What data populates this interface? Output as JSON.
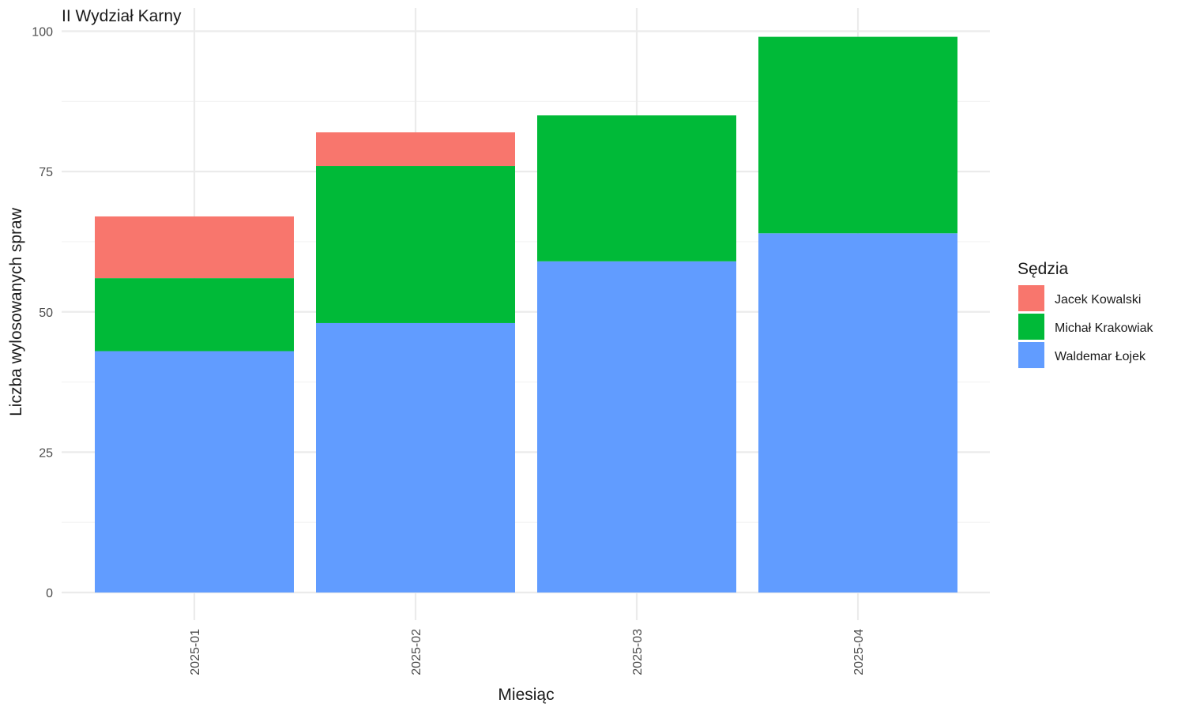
{
  "chart_data": {
    "type": "bar",
    "stacked": true,
    "title": "II Wydział Karny",
    "xlabel": "Miesiąc",
    "ylabel": "Liczba wylosowanych spraw",
    "categories": [
      "2025-01",
      "2025-02",
      "2025-03",
      "2025-04"
    ],
    "ylim": [
      0,
      100
    ],
    "yticks": [
      0,
      25,
      50,
      75,
      100
    ],
    "grid": true,
    "legend": {
      "title": "Sędzia",
      "position": "right"
    },
    "series": [
      {
        "name": "Waldemar Łojek",
        "color": "#619CFF",
        "values": [
          43,
          48,
          59,
          64
        ]
      },
      {
        "name": "Michał Krakowiak",
        "color": "#00BA38",
        "values": [
          13,
          28,
          26,
          35
        ]
      },
      {
        "name": "Jacek Kowalski",
        "color": "#F8766D",
        "values": [
          11,
          6,
          0,
          0
        ]
      }
    ],
    "legend_order": [
      "Jacek Kowalski",
      "Michał Krakowiak",
      "Waldemar Łojek"
    ]
  }
}
